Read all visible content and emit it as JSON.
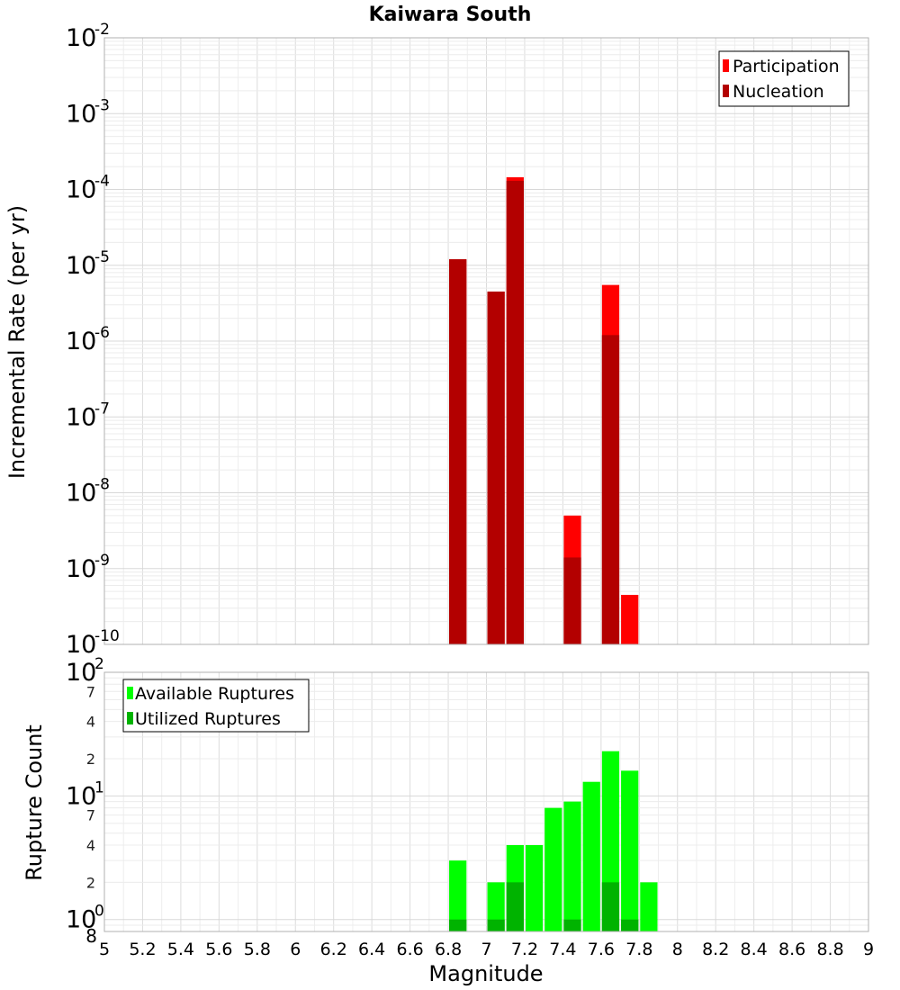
{
  "chart_data": [
    {
      "type": "bar",
      "title": "Kaiwara South",
      "ylabel": "Incremental Rate (per yr)",
      "yscale": "log",
      "ylim": [
        1e-10,
        0.01
      ],
      "xlim": [
        5,
        9
      ],
      "bar_width": 0.1,
      "grid": true,
      "legend_position": "top-right",
      "y_ticks": [
        {
          "value": 1e-10,
          "base": "10",
          "exp": "-10"
        },
        {
          "value": 1e-09,
          "base": "10",
          "exp": "-9"
        },
        {
          "value": 1e-08,
          "base": "10",
          "exp": "-8"
        },
        {
          "value": 1e-07,
          "base": "10",
          "exp": "-7"
        },
        {
          "value": 1e-06,
          "base": "10",
          "exp": "-6"
        },
        {
          "value": 1e-05,
          "base": "10",
          "exp": "-5"
        },
        {
          "value": 0.0001,
          "base": "10",
          "exp": "-4"
        },
        {
          "value": 0.001,
          "base": "10",
          "exp": "-3"
        },
        {
          "value": 0.01,
          "base": "10",
          "exp": "-2"
        }
      ],
      "series": [
        {
          "name": "Participation",
          "color": "#ff0000",
          "x": [
            6.85,
            7.05,
            7.15,
            7.45,
            7.65,
            7.75
          ],
          "values": [
            1.2e-05,
            4.5e-06,
            0.000145,
            5e-09,
            5.5e-06,
            4.5e-10
          ]
        },
        {
          "name": "Nucleation",
          "color": "#b30000",
          "x": [
            6.85,
            7.05,
            7.15,
            7.45,
            7.65
          ],
          "values": [
            1.2e-05,
            4.5e-06,
            0.00013,
            1.4e-09,
            1.2e-06
          ]
        }
      ]
    },
    {
      "type": "bar",
      "xlabel": "Magnitude",
      "ylabel": "Rupture Count",
      "yscale": "log",
      "ylim": [
        0.8,
        100
      ],
      "xlim": [
        5,
        9
      ],
      "bar_width": 0.1,
      "grid": true,
      "legend_position": "top-left",
      "x_ticks": [
        "5",
        "5.2",
        "5.4",
        "5.6",
        "5.8",
        "6",
        "6.2",
        "6.4",
        "6.6",
        "6.8",
        "7",
        "7.2",
        "7.4",
        "7.6",
        "7.8",
        "8",
        "8.2",
        "8.4",
        "8.6",
        "8.8",
        "9"
      ],
      "y_major_ticks": [
        {
          "value": 1,
          "base": "10",
          "exp": "0"
        },
        {
          "value": 10,
          "base": "10",
          "exp": "1"
        },
        {
          "value": 100,
          "base": "10",
          "exp": "2"
        }
      ],
      "y_minor_labels": [
        {
          "value": 0.8,
          "label": "8"
        },
        {
          "value": 2,
          "label": "2"
        },
        {
          "value": 4,
          "label": "4"
        },
        {
          "value": 7,
          "label": "7"
        },
        {
          "value": 20,
          "label": "2"
        },
        {
          "value": 40,
          "label": "4"
        },
        {
          "value": 70,
          "label": "7"
        }
      ],
      "series": [
        {
          "name": "Available Ruptures",
          "color": "#00ff00",
          "x": [
            6.85,
            7.05,
            7.15,
            7.25,
            7.35,
            7.45,
            7.55,
            7.65,
            7.75,
            7.85
          ],
          "values": [
            3,
            2,
            4,
            4,
            8,
            9,
            13,
            23,
            16,
            2
          ]
        },
        {
          "name": "Utilized Ruptures",
          "color": "#00b300",
          "x": [
            6.85,
            7.05,
            7.15,
            7.45,
            7.65,
            7.75
          ],
          "values": [
            1,
            1,
            2,
            1,
            2,
            1
          ]
        }
      ]
    }
  ]
}
